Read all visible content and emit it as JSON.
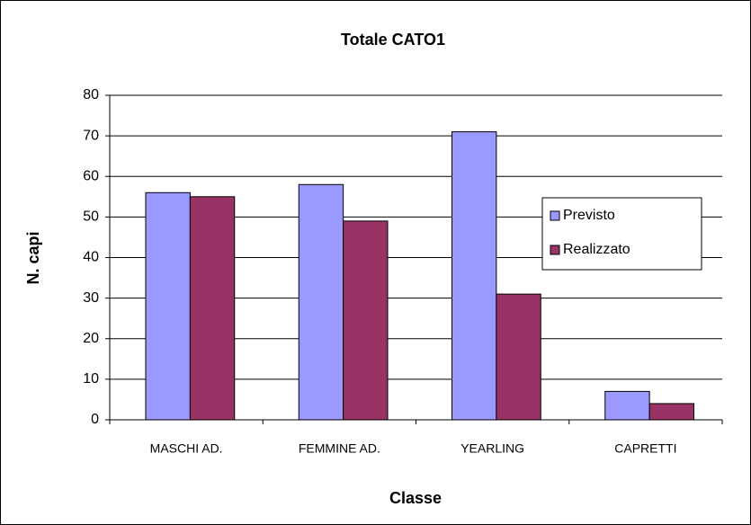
{
  "chart_data": {
    "type": "bar",
    "title": "Totale CATO1",
    "x_label": "Classe",
    "y_label": "N. capi",
    "categories": [
      "MASCHI AD.",
      "FEMMINE AD.",
      "YEARLING",
      "CAPRETTI"
    ],
    "series": [
      {
        "name": "Previsto",
        "color": "#9999ff",
        "values": [
          56,
          58,
          71,
          7
        ]
      },
      {
        "name": "Realizzato",
        "color": "#993366",
        "values": [
          55,
          49,
          31,
          4
        ]
      }
    ],
    "ylim": [
      0,
      80
    ],
    "yticks": [
      0,
      10,
      20,
      30,
      40,
      50,
      60,
      70,
      80
    ],
    "grid": true,
    "legend": "right"
  }
}
